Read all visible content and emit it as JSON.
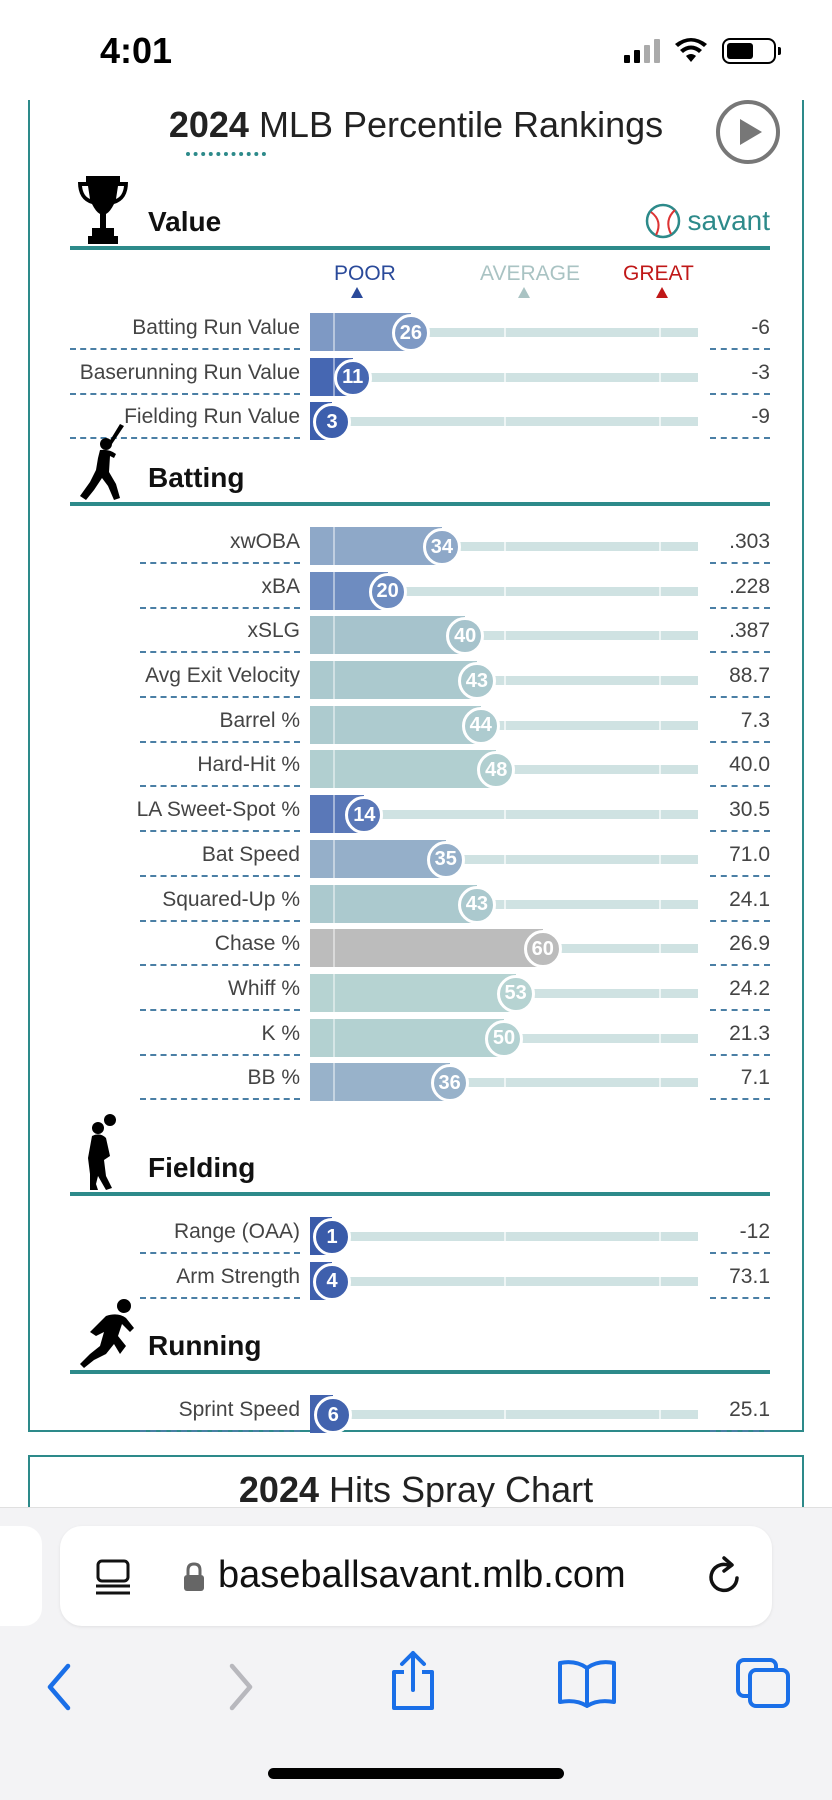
{
  "status_bar": {
    "time": "4:01"
  },
  "card": {
    "title_year": "2024",
    "title_rest": " MLB Percentile Rankings"
  },
  "brand": {
    "savant": "savant"
  },
  "scale": {
    "poor": "POOR",
    "average": "AVERAGE",
    "great": "GREAT"
  },
  "colors": {
    "teal": "#2d8a8a",
    "poor_blue": "#2a4a9a",
    "great_red": "#c01818"
  },
  "sections": [
    {
      "name": "Value",
      "icon": "trophy-icon",
      "rows": [
        {
          "label": "Batting Run Value",
          "pct": 26,
          "value": "-6",
          "color": "#7e99c4"
        },
        {
          "label": "Baserunning Run Value",
          "pct": 11,
          "value": "-3",
          "color": "#4667b2"
        },
        {
          "label": "Fielding Run Value",
          "pct": 3,
          "value": "-9",
          "color": "#3d5fad"
        }
      ]
    },
    {
      "name": "Batting",
      "icon": "batter-icon",
      "rows": [
        {
          "label": "xwOBA",
          "pct": 34,
          "value": ".303",
          "color": "#8ea8c8"
        },
        {
          "label": "xBA",
          "pct": 20,
          "value": ".228",
          "color": "#6e8cc0"
        },
        {
          "label": "xSLG",
          "pct": 40,
          "value": ".387",
          "color": "#a6c3cc"
        },
        {
          "label": "Avg Exit Velocity",
          "pct": 43,
          "value": "88.7",
          "color": "#abc9ce"
        },
        {
          "label": "Barrel %",
          "pct": 44,
          "value": "7.3",
          "color": "#adcbcf"
        },
        {
          "label": "Hard-Hit %",
          "pct": 48,
          "value": "40.0",
          "color": "#b1cfd0"
        },
        {
          "label": "LA Sweet-Spot %",
          "pct": 14,
          "value": "30.5",
          "color": "#5a78b8"
        },
        {
          "label": "Bat Speed",
          "pct": 35,
          "value": "71.0",
          "color": "#95afc9"
        },
        {
          "label": "Squared-Up %",
          "pct": 43,
          "value": "24.1",
          "color": "#abc9ce"
        },
        {
          "label": "Chase %",
          "pct": 60,
          "value": "26.9",
          "color": "#bcbcbc"
        },
        {
          "label": "Whiff %",
          "pct": 53,
          "value": "24.2",
          "color": "#b6d3d2"
        },
        {
          "label": "K %",
          "pct": 50,
          "value": "21.3",
          "color": "#b3d1d1"
        },
        {
          "label": "BB %",
          "pct": 36,
          "value": "7.1",
          "color": "#98b2ca"
        }
      ]
    },
    {
      "name": "Fielding",
      "icon": "fielder-icon",
      "rows": [
        {
          "label": "Range (OAA)",
          "pct": 1,
          "value": "-12",
          "color": "#3a5ba9"
        },
        {
          "label": "Arm Strength",
          "pct": 4,
          "value": "73.1",
          "color": "#3f60ad"
        }
      ]
    },
    {
      "name": "Running",
      "icon": "runner-icon",
      "rows": [
        {
          "label": "Sprint Speed",
          "pct": 6,
          "value": "25.1",
          "color": "#4263ae"
        }
      ]
    }
  ],
  "next_card": {
    "title_year": "2024",
    "title_rest": " Hits Spray Chart"
  },
  "browser": {
    "url": "baseballsavant.mlb.com"
  }
}
